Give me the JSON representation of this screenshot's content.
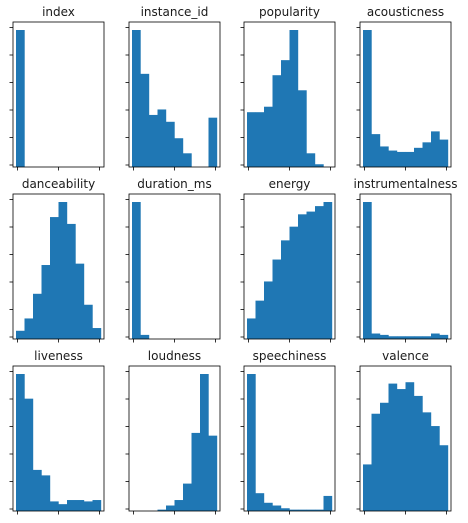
{
  "chart_data": [
    {
      "type": "bar",
      "title": "index",
      "values": [
        1.0,
        0,
        0,
        0,
        0,
        0,
        0,
        0,
        0,
        0
      ],
      "ylim": [
        0,
        1.0
      ],
      "color": "#1f77b4"
    },
    {
      "type": "bar",
      "title": "instance_id",
      "values": [
        1.0,
        0.68,
        0.38,
        0.42,
        0.33,
        0.21,
        0.1,
        0,
        0,
        0.36
      ],
      "ylim": [
        0,
        1.0
      ],
      "color": "#1f77b4"
    },
    {
      "type": "bar",
      "title": "popularity",
      "values": [
        0.4,
        0.4,
        0.44,
        0.67,
        0.78,
        1.0,
        0.56,
        0.1,
        0.02,
        0
      ],
      "ylim": [
        0,
        1.0
      ],
      "color": "#1f77b4"
    },
    {
      "type": "bar",
      "title": "acousticness",
      "values": [
        1.0,
        0.24,
        0.15,
        0.12,
        0.11,
        0.11,
        0.14,
        0.18,
        0.26,
        0.2
      ],
      "ylim": [
        0,
        1.0
      ],
      "color": "#1f77b4"
    },
    {
      "type": "bar",
      "title": "danceability",
      "values": [
        0.06,
        0.15,
        0.33,
        0.54,
        0.89,
        1.0,
        0.84,
        0.55,
        0.25,
        0.08
      ],
      "ylim": [
        0,
        1.0
      ],
      "color": "#1f77b4"
    },
    {
      "type": "bar",
      "title": "duration_ms",
      "values": [
        1.0,
        0.03,
        0,
        0,
        0,
        0,
        0,
        0,
        0,
        0
      ],
      "ylim": [
        0,
        1.0
      ],
      "color": "#1f77b4"
    },
    {
      "type": "bar",
      "title": "energy",
      "values": [
        0.15,
        0.28,
        0.42,
        0.58,
        0.72,
        0.82,
        0.91,
        0.93,
        0.97,
        1.0
      ],
      "ylim": [
        0,
        1.0
      ],
      "color": "#1f77b4"
    },
    {
      "type": "bar",
      "title": "instrumentalness",
      "values": [
        1.0,
        0.04,
        0.03,
        0.02,
        0.02,
        0.02,
        0.02,
        0.02,
        0.04,
        0.03
      ],
      "ylim": [
        0,
        1.0
      ],
      "color": "#1f77b4"
    },
    {
      "type": "bar",
      "title": "liveness",
      "values": [
        1.0,
        0.82,
        0.3,
        0.26,
        0.07,
        0.05,
        0.08,
        0.08,
        0.07,
        0.08
      ],
      "ylim": [
        0,
        1.0
      ],
      "color": "#1f77b4"
    },
    {
      "type": "bar",
      "title": "loudness",
      "values": [
        0,
        0,
        0,
        0.01,
        0.04,
        0.08,
        0.2,
        0.57,
        1.0,
        0.55
      ],
      "ylim": [
        0,
        1.0
      ],
      "color": "#1f77b4"
    },
    {
      "type": "bar",
      "title": "speechiness",
      "values": [
        1.0,
        0.13,
        0.06,
        0.04,
        0.02,
        0.01,
        0.01,
        0.01,
        0.01,
        0.11
      ],
      "ylim": [
        0,
        1.0
      ],
      "color": "#1f77b4"
    },
    {
      "type": "bar",
      "title": "valence",
      "values": [
        0.34,
        0.71,
        0.79,
        0.93,
        0.89,
        0.94,
        0.84,
        0.72,
        0.62,
        0.48
      ],
      "ylim": [
        0,
        1.0
      ],
      "color": "#1f77b4"
    }
  ]
}
